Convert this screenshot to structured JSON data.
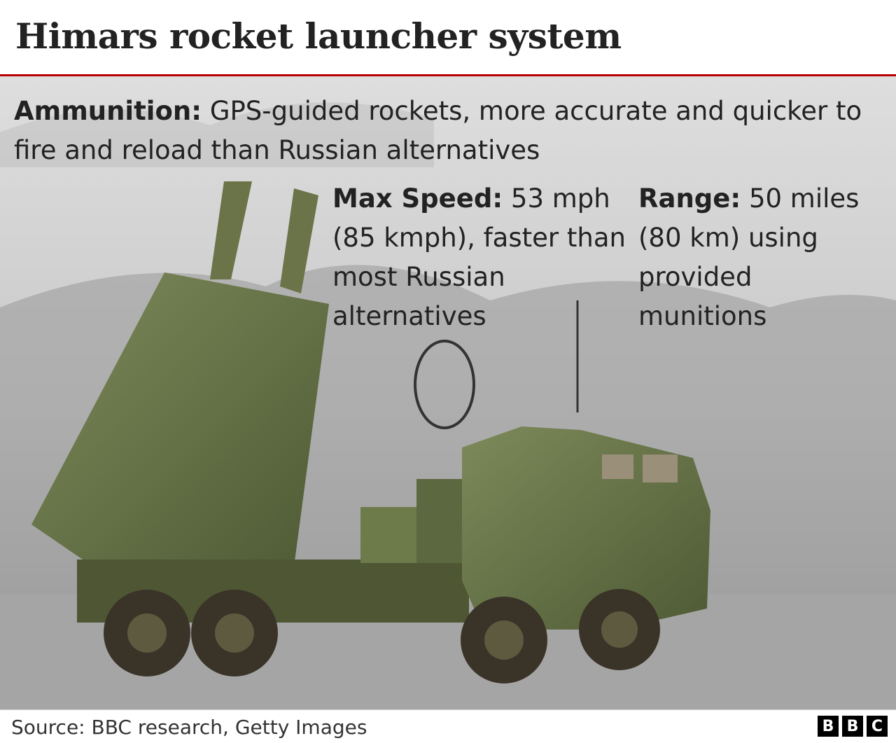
{
  "header": {
    "title": "Himars rocket launcher system"
  },
  "annotations": [
    {
      "label": "Ammunition:",
      "text": "GPS-guided rockets, more accurate and quicker to fire and reload than Russian alternatives"
    },
    {
      "label": "Max Speed:",
      "text": "53 mph (85 kmph), faster than most Russian alternatives"
    },
    {
      "label": "Range:",
      "text": "50 miles (80 km) using provided munitions"
    }
  ],
  "footer": {
    "source": "Source: BBC research, Getty Images",
    "logo": [
      "B",
      "B",
      "C"
    ]
  }
}
